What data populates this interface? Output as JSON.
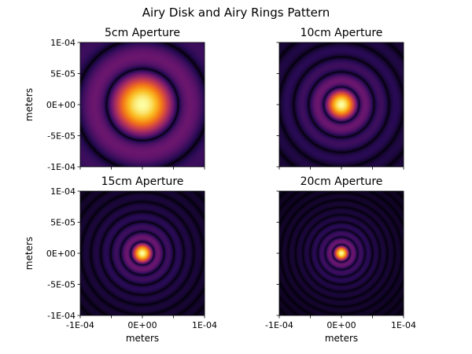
{
  "figure": {
    "title": "Airy Disk and Airy Rings Pattern"
  },
  "chart_data": [
    {
      "type": "heatmap",
      "title": "5cm Aperture",
      "aperture_cm": 5,
      "xlabel": "",
      "ylabel": "meters",
      "xlim": [
        -0.0001,
        0.0001
      ],
      "ylim": [
        -0.0001,
        0.0001
      ],
      "xticks": [],
      "yticks": [
        "-1E-04",
        "-5E-05",
        "0E+00",
        "5E-05",
        "1E-04"
      ],
      "colormap": "inferno",
      "grid": false
    },
    {
      "type": "heatmap",
      "title": "10cm Aperture",
      "aperture_cm": 10,
      "xlabel": "",
      "ylabel": "",
      "xlim": [
        -0.0001,
        0.0001
      ],
      "ylim": [
        -0.0001,
        0.0001
      ],
      "xticks": [],
      "yticks": [],
      "colormap": "inferno",
      "grid": false
    },
    {
      "type": "heatmap",
      "title": "15cm Aperture",
      "aperture_cm": 15,
      "xlabel": "meters",
      "ylabel": "meters",
      "xlim": [
        -0.0001,
        0.0001
      ],
      "ylim": [
        -0.0001,
        0.0001
      ],
      "xticks": [
        "-1E-04",
        "0E+00",
        "1E-04"
      ],
      "yticks": [
        "-1E-04",
        "-5E-05",
        "0E+00",
        "5E-05",
        "1E-04"
      ],
      "colormap": "inferno",
      "grid": false
    },
    {
      "type": "heatmap",
      "title": "20cm Aperture",
      "aperture_cm": 20,
      "xlabel": "meters",
      "ylabel": "",
      "xlim": [
        -0.0001,
        0.0001
      ],
      "ylim": [
        -0.0001,
        0.0001
      ],
      "xticks": [
        "-1E-04",
        "0E+00",
        "1E-04"
      ],
      "yticks": [],
      "colormap": "inferno",
      "grid": false
    }
  ]
}
